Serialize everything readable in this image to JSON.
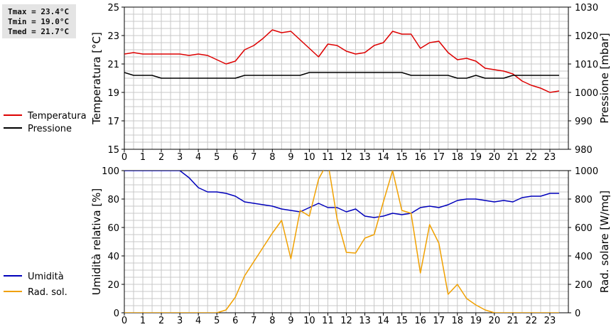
{
  "stats": {
    "tmax": "Tmax = 23.4°C",
    "tmin": "Tmin = 19.0°C",
    "tmed": "Tmed = 21.7°C"
  },
  "chart_data": [
    {
      "type": "line",
      "grid": true,
      "legend_placement": "left",
      "x_ticks": [
        "0",
        "1",
        "2",
        "3",
        "4",
        "5",
        "6",
        "7",
        "8",
        "9",
        "10",
        "11",
        "12",
        "13",
        "14",
        "15",
        "16",
        "17",
        "18",
        "19",
        "20",
        "21",
        "22",
        "23"
      ],
      "xlim": [
        0,
        24
      ],
      "left_axis": {
        "label": "Temperatura [°C]",
        "ylim": [
          15,
          25
        ],
        "ticks": [
          "15",
          "17",
          "19",
          "21",
          "23",
          "25"
        ]
      },
      "right_axis": {
        "label": "Pressione [mbar]",
        "ylim": [
          980,
          1030
        ],
        "ticks": [
          "980",
          "990",
          "1000",
          "1010",
          "1020",
          "1030"
        ]
      },
      "series": [
        {
          "name": "Temperatura",
          "axis": "left",
          "color": "#dd0000",
          "x": [
            0,
            0.5,
            1,
            1.5,
            2,
            2.5,
            3,
            3.5,
            4,
            4.5,
            5,
            5.5,
            6,
            6.5,
            7,
            7.5,
            8,
            8.5,
            9,
            9.5,
            10,
            10.5,
            11,
            11.5,
            12,
            12.5,
            13,
            13.5,
            14,
            14.5,
            15,
            15.5,
            16,
            16.5,
            17,
            17.5,
            18,
            18.5,
            19,
            19.5,
            20,
            20.5,
            21,
            21.5,
            22,
            22.5,
            23,
            23.5
          ],
          "y": [
            21.7,
            21.8,
            21.7,
            21.7,
            21.7,
            21.7,
            21.7,
            21.6,
            21.7,
            21.6,
            21.3,
            21.0,
            21.2,
            22.0,
            22.3,
            22.8,
            23.4,
            23.2,
            23.3,
            22.7,
            22.1,
            21.5,
            22.4,
            22.3,
            21.9,
            21.7,
            21.8,
            22.3,
            22.5,
            23.3,
            23.1,
            23.1,
            22.1,
            22.5,
            22.6,
            21.8,
            21.3,
            21.4,
            21.2,
            20.7,
            20.6,
            20.5,
            20.3,
            19.8,
            19.5,
            19.3,
            19.0,
            19.1
          ]
        },
        {
          "name": "Pressione",
          "axis": "right",
          "color": "#000000",
          "x": [
            0,
            0.5,
            1,
            1.5,
            2,
            2.5,
            3,
            3.5,
            4,
            4.5,
            5,
            5.5,
            6,
            6.5,
            7,
            7.5,
            8,
            8.5,
            9,
            9.5,
            10,
            10.5,
            11,
            11.5,
            12,
            12.5,
            13,
            13.5,
            14,
            14.5,
            15,
            15.5,
            16,
            16.5,
            17,
            17.5,
            18,
            18.5,
            19,
            19.5,
            20,
            20.5,
            21,
            21.5,
            22,
            22.5,
            23,
            23.5
          ],
          "y": [
            1007,
            1006,
            1006,
            1006,
            1005,
            1005,
            1005,
            1005,
            1005,
            1005,
            1005,
            1005,
            1005,
            1006,
            1006,
            1006,
            1006,
            1006,
            1006,
            1006,
            1007,
            1007,
            1007,
            1007,
            1007,
            1007,
            1007,
            1007,
            1007,
            1007,
            1007,
            1006,
            1006,
            1006,
            1006,
            1006,
            1005,
            1005,
            1006,
            1005,
            1005,
            1005,
            1006,
            1006,
            1006,
            1006,
            1006,
            1006
          ]
        }
      ]
    },
    {
      "type": "line",
      "grid": true,
      "legend_placement": "left",
      "x_ticks": [
        "0",
        "1",
        "2",
        "3",
        "4",
        "5",
        "6",
        "7",
        "8",
        "9",
        "10",
        "11",
        "12",
        "13",
        "14",
        "15",
        "16",
        "17",
        "18",
        "19",
        "20",
        "21",
        "22",
        "23"
      ],
      "xlim": [
        0,
        24
      ],
      "left_axis": {
        "label": "Umidità relativa [%]",
        "ylim": [
          0,
          100
        ],
        "ticks": [
          "0",
          "20",
          "40",
          "60",
          "80",
          "100"
        ]
      },
      "right_axis": {
        "label": "Rad. solare [W/mq]",
        "ylim": [
          0,
          1000
        ],
        "ticks": [
          "0",
          "200",
          "400",
          "600",
          "800",
          "1000"
        ]
      },
      "series": [
        {
          "name": "Umidità",
          "axis": "left",
          "color": "#0000bb",
          "x": [
            0,
            0.5,
            1,
            1.5,
            2,
            2.5,
            3,
            3.5,
            4,
            4.5,
            5,
            5.5,
            6,
            6.5,
            7,
            7.5,
            8,
            8.5,
            9,
            9.5,
            10,
            10.5,
            11,
            11.5,
            12,
            12.5,
            13,
            13.5,
            14,
            14.5,
            15,
            15.5,
            16,
            16.5,
            17,
            17.5,
            18,
            18.5,
            19,
            19.5,
            20,
            20.5,
            21,
            21.5,
            22,
            22.5,
            23,
            23.5
          ],
          "y": [
            100,
            100,
            100,
            100,
            100,
            100,
            100,
            95,
            88,
            85,
            85,
            84,
            82,
            78,
            77,
            76,
            75,
            73,
            72,
            71,
            74,
            77,
            74,
            74,
            71,
            73,
            68,
            67,
            68,
            70,
            69,
            70,
            74,
            75,
            74,
            76,
            79,
            80,
            80,
            79,
            78,
            79,
            78,
            81,
            82,
            82,
            84,
            84
          ]
        },
        {
          "name": "Rad. sol.",
          "axis": "right",
          "color": "#f0a000",
          "x": [
            0,
            0.5,
            1,
            1.5,
            2,
            2.5,
            3,
            3.5,
            4,
            4.5,
            5,
            5.5,
            6,
            6.5,
            7,
            7.5,
            8,
            8.5,
            9,
            9.5,
            10,
            10.5,
            11,
            11.5,
            12,
            12.5,
            13,
            13.5,
            14,
            14.5,
            15,
            15.5,
            16,
            16.5,
            17,
            17.5,
            18,
            18.5,
            19,
            19.5,
            20,
            20.5,
            21,
            21.5,
            22,
            22.5,
            23,
            23.5
          ],
          "y": [
            0,
            0,
            0,
            0,
            0,
            0,
            0,
            0,
            0,
            0,
            0,
            20,
            110,
            260,
            360,
            460,
            560,
            650,
            380,
            720,
            680,
            940,
            1060,
            660,
            425,
            420,
            525,
            550,
            780,
            1000,
            720,
            700,
            280,
            620,
            490,
            130,
            200,
            100,
            55,
            20,
            0,
            0,
            0,
            0,
            0,
            0,
            0,
            0
          ]
        }
      ]
    }
  ]
}
